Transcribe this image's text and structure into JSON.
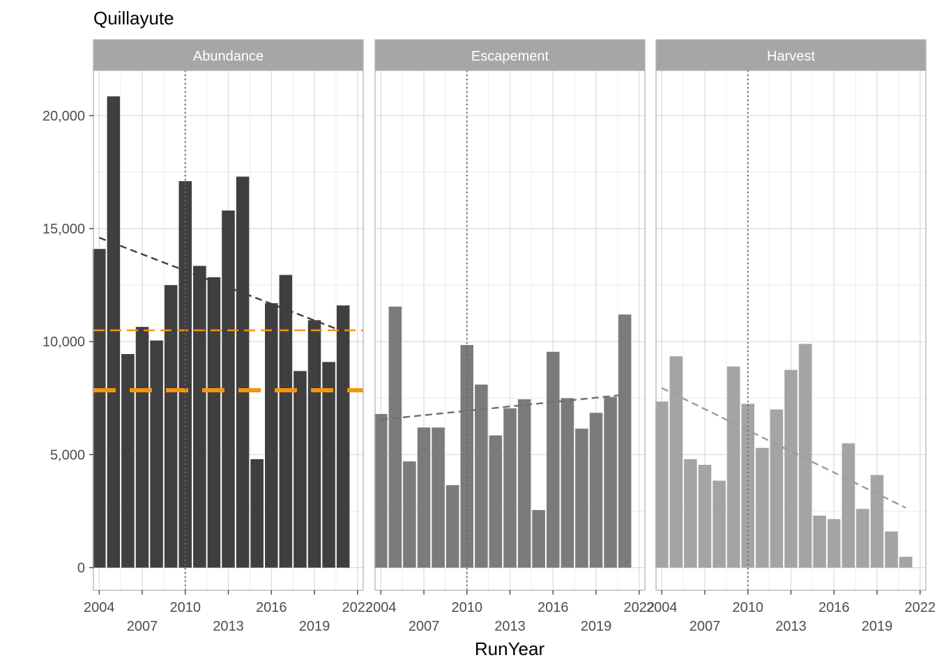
{
  "chart_data": {
    "type": "bar",
    "title": "Quillayute",
    "xlabel": "RunYear",
    "ylabel": "",
    "xlim": [
      2003.6,
      2022.4
    ],
    "ylim": [
      -1000,
      22000
    ],
    "x_ticks": [
      2004,
      2007,
      2010,
      2013,
      2016,
      2019,
      2022
    ],
    "y_ticks": [
      0,
      5000,
      10000,
      15000,
      20000
    ],
    "y_tick_labels": [
      "0",
      "5,000",
      "10,000",
      "15,000",
      "20,000"
    ],
    "x_tick_labels": [
      "2004",
      "2007",
      "2010",
      "2013",
      "2016",
      "2019",
      "2022"
    ],
    "reference_year": 2010,
    "years": [
      2004,
      2005,
      2006,
      2007,
      2008,
      2009,
      2010,
      2011,
      2012,
      2013,
      2014,
      2015,
      2016,
      2017,
      2018,
      2019,
      2020,
      2021
    ],
    "series": [
      {
        "name": "Abundance",
        "color": "#3f3f3f",
        "values": [
          14100,
          20850,
          9450,
          10650,
          10050,
          12500,
          17100,
          13350,
          12850,
          15800,
          17300,
          4800,
          11700,
          12950,
          8700,
          10950,
          9100,
          11600
        ],
        "trend": [
          14600,
          10450
        ],
        "ref_lines": [
          {
            "value": 10500,
            "style": "dashed",
            "color": "#f5950f"
          },
          {
            "value": 7850,
            "style": "thick-dashed",
            "color": "#f5950f"
          }
        ]
      },
      {
        "name": "Escapement",
        "color": "#7b7b7b",
        "values": [
          6800,
          11550,
          4700,
          6200,
          6200,
          3650,
          9850,
          8100,
          5850,
          7050,
          7450,
          2550,
          9550,
          7500,
          6150,
          6850,
          7550,
          11200
        ],
        "trend": [
          6550,
          7650
        ],
        "ref_lines": []
      },
      {
        "name": "Harvest",
        "color": "#a4a4a4",
        "values": [
          7350,
          9350,
          4800,
          4550,
          3850,
          8900,
          7250,
          5300,
          7000,
          8750,
          9900,
          2300,
          2150,
          5500,
          2600,
          4100,
          1600,
          480
        ],
        "trend": [
          7950,
          2650
        ],
        "ref_lines": []
      }
    ]
  }
}
